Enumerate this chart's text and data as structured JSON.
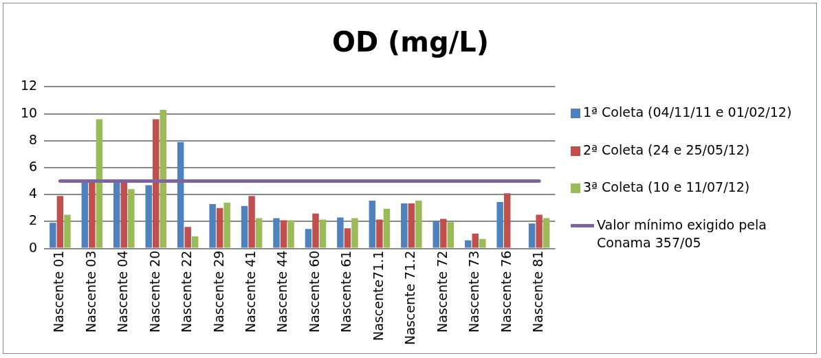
{
  "chart_data": {
    "type": "bar",
    "title": "OD (mg/L)",
    "categories": [
      "Nascente 01",
      "Nascente 03",
      "Nascente 04",
      "Nascente 20",
      "Nascente 22",
      "Nascente 29",
      "Nascente 41",
      "Nascente 44",
      "Nascente 60",
      "Nascente 61",
      "Nascente71.1",
      "Nascente 71.2",
      "Nascente 72",
      "Nascente 73",
      "Nascente 76",
      "Nascente 81"
    ],
    "series": [
      {
        "name": "1ª Coleta (04/11/11 e 01/02/12)",
        "color": "#4f81bd",
        "values": [
          1.9,
          5.0,
          5.0,
          4.7,
          7.9,
          3.3,
          3.15,
          2.25,
          1.45,
          2.3,
          3.55,
          3.35,
          2.05,
          0.6,
          3.45,
          1.85
        ]
      },
      {
        "name": "2ª Coleta (24 e 25/05/12)",
        "color": "#c0504d",
        "values": [
          3.9,
          5.0,
          5.0,
          9.6,
          1.6,
          3.0,
          3.9,
          2.1,
          2.6,
          1.5,
          2.15,
          3.35,
          2.2,
          1.1,
          4.1,
          2.5
        ]
      },
      {
        "name": "3ª Coleta (10 e 11/07/12)",
        "color": "#9bbb59",
        "values": [
          2.5,
          9.6,
          4.4,
          10.3,
          0.9,
          3.4,
          2.25,
          2.1,
          2.15,
          2.25,
          2.95,
          3.55,
          1.95,
          0.7,
          null,
          2.25
        ]
      },
      {
        "name": "Valor mínimo exigido pela Conama 357/05",
        "color": "#8064a2",
        "type": "line",
        "marker": "none",
        "values": [
          5,
          5,
          5,
          5,
          5,
          5,
          5,
          5,
          5,
          5,
          5,
          5,
          5,
          5,
          5,
          5
        ]
      }
    ],
    "ylim": [
      0,
      12
    ],
    "yticks": [
      0,
      2,
      4,
      6,
      8,
      10,
      12
    ],
    "grid": "y",
    "legend": "right"
  }
}
